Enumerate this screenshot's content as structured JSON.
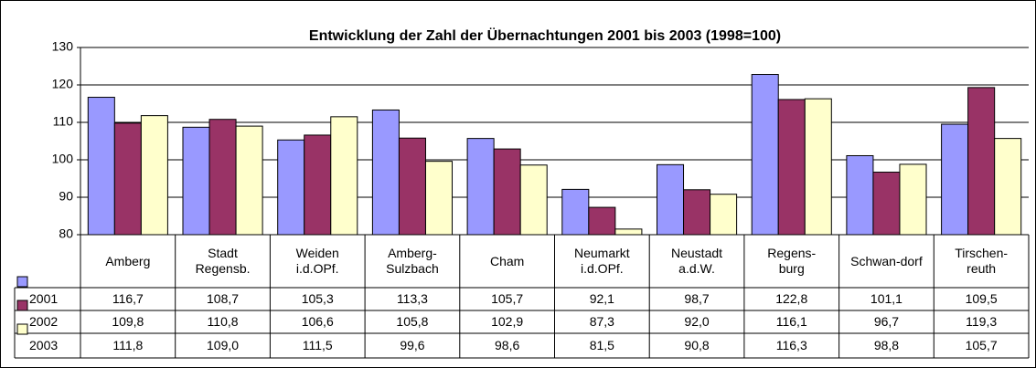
{
  "chart_data": {
    "type": "bar",
    "title": "Entwicklung der Zahl der Übernachtungen 2001 bis 2003 (1998=100)",
    "categories": [
      "Amberg",
      "Stadt\nRegensb.",
      "Weiden\ni.d.OPf.",
      "Amberg-\nSulzbach",
      "Cham",
      "Neumarkt\ni.d.OPf.",
      "Neustadt\na.d.W.",
      "Regens-\nburg",
      "Schwan-dorf",
      "Tirschen-\nreuth"
    ],
    "series": [
      {
        "name": "2001",
        "color": "#9999ff",
        "values": [
          116.7,
          108.7,
          105.3,
          113.3,
          105.7,
          92.1,
          98.7,
          122.8,
          101.1,
          109.5
        ],
        "value_labels": [
          "116,7",
          "108,7",
          "105,3",
          "113,3",
          "105,7",
          "92,1",
          "98,7",
          "122,8",
          "101,1",
          "109,5"
        ]
      },
      {
        "name": "2002",
        "color": "#993366",
        "values": [
          109.8,
          110.8,
          106.6,
          105.8,
          102.9,
          87.3,
          92.0,
          116.1,
          96.7,
          119.3
        ],
        "value_labels": [
          "109,8",
          "110,8",
          "106,6",
          "105,8",
          "102,9",
          "87,3",
          "92,0",
          "116,1",
          "96,7",
          "119,3"
        ]
      },
      {
        "name": "2003",
        "color": "#ffffcc",
        "values": [
          111.8,
          109.0,
          111.5,
          99.6,
          98.6,
          81.5,
          90.8,
          116.3,
          98.8,
          105.7
        ],
        "value_labels": [
          "111,8",
          "109,0",
          "111,5",
          "99,6",
          "98,6",
          "81,5",
          "90,8",
          "116,3",
          "98,8",
          "105,7"
        ]
      }
    ],
    "ylim": [
      80,
      130
    ],
    "yticks": [
      80,
      90,
      100,
      110,
      120,
      130
    ],
    "grid": true
  }
}
